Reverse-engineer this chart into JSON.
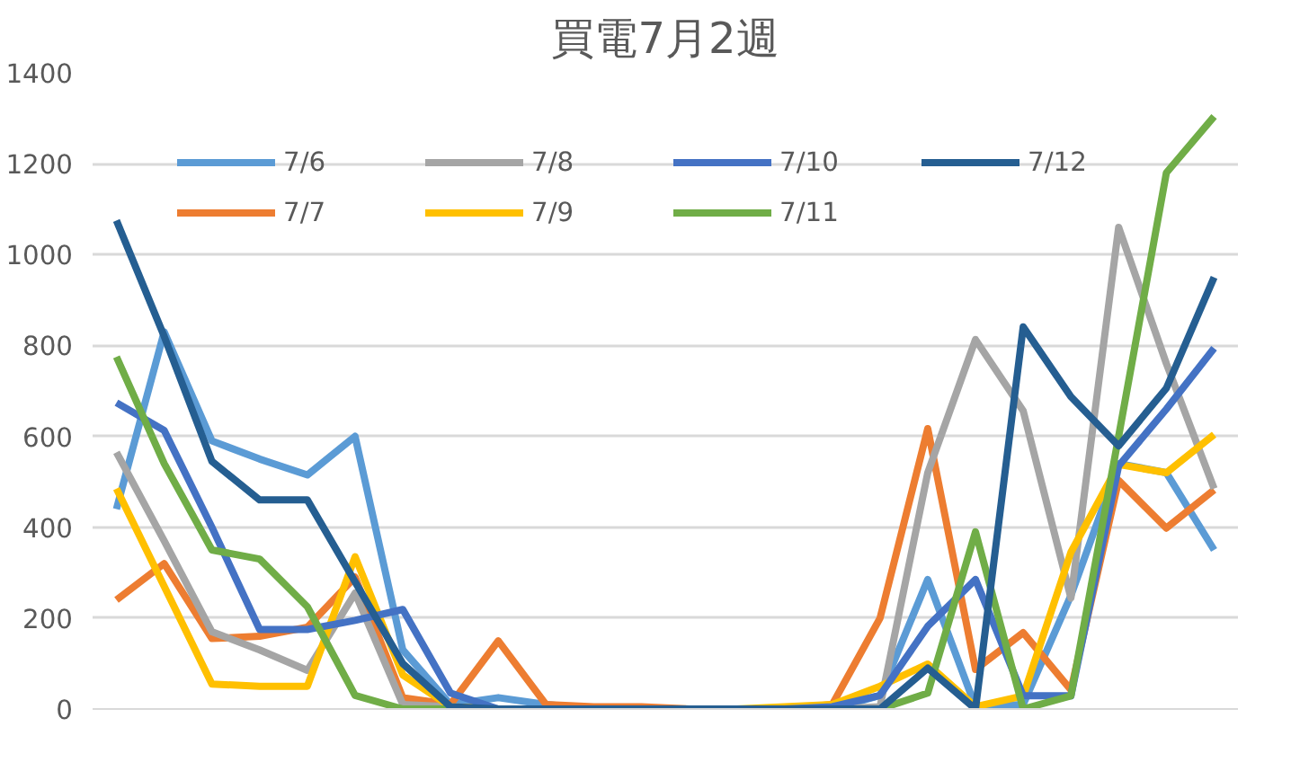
{
  "chart_data": {
    "type": "line",
    "title": "買電7月2週",
    "categories": [
      null,
      null,
      null,
      null,
      null,
      null,
      null,
      null,
      null,
      null,
      null,
      null,
      null,
      null,
      null,
      null,
      null,
      null,
      null,
      null,
      null,
      null,
      null,
      null
    ],
    "series": [
      {
        "name": "7/6",
        "color": "#5b9bd5",
        "values": [
          440,
          830,
          590,
          550,
          515,
          600,
          130,
          10,
          25,
          10,
          0,
          0,
          0,
          0,
          0,
          0,
          30,
          285,
          5,
          10,
          250,
          540,
          520,
          350
        ]
      },
      {
        "name": "7/7",
        "color": "#ed7d31",
        "values": [
          240,
          320,
          155,
          160,
          180,
          290,
          25,
          10,
          150,
          10,
          5,
          5,
          0,
          0,
          0,
          10,
          200,
          617,
          87,
          168,
          42,
          503,
          398,
          482
        ]
      },
      {
        "name": "7/8",
        "color": "#a5a5a5",
        "values": [
          565,
          370,
          170,
          130,
          85,
          255,
          10,
          5,
          0,
          0,
          0,
          0,
          0,
          0,
          0,
          0,
          5,
          520,
          813,
          656,
          244,
          1060,
          760,
          485
        ]
      },
      {
        "name": "7/9",
        "color": "#ffc000",
        "values": [
          485,
          270,
          55,
          50,
          50,
          335,
          75,
          5,
          0,
          0,
          0,
          0,
          0,
          0,
          5,
          10,
          50,
          99,
          5,
          29,
          345,
          538,
          520,
          604
        ]
      },
      {
        "name": "7/10",
        "color": "#4472c4",
        "values": [
          674,
          613,
          400,
          175,
          175,
          195,
          219,
          35,
          0,
          0,
          0,
          0,
          0,
          0,
          0,
          5,
          30,
          182,
          285,
          29,
          29,
          535,
          660,
          794
        ]
      },
      {
        "name": "7/11",
        "color": "#70ad47",
        "values": [
          775,
          540,
          350,
          330,
          225,
          30,
          0,
          0,
          0,
          0,
          0,
          0,
          0,
          0,
          0,
          0,
          0,
          35,
          390,
          0,
          29,
          600,
          1180,
          1304
        ]
      },
      {
        "name": "7/12",
        "color": "#255e91",
        "values": [
          1075,
          820,
          545,
          460,
          460,
          280,
          100,
          5,
          0,
          0,
          0,
          0,
          0,
          0,
          0,
          0,
          0,
          90,
          0,
          841,
          687,
          579,
          706,
          950
        ]
      }
    ],
    "ylim": [
      0,
      1400
    ],
    "yticks": [
      0,
      200,
      400,
      600,
      800,
      1000,
      1200,
      1400
    ],
    "grid": "y",
    "legend": "top",
    "tick_labels": "y",
    "marker": "none",
    "line_style": "solid"
  }
}
